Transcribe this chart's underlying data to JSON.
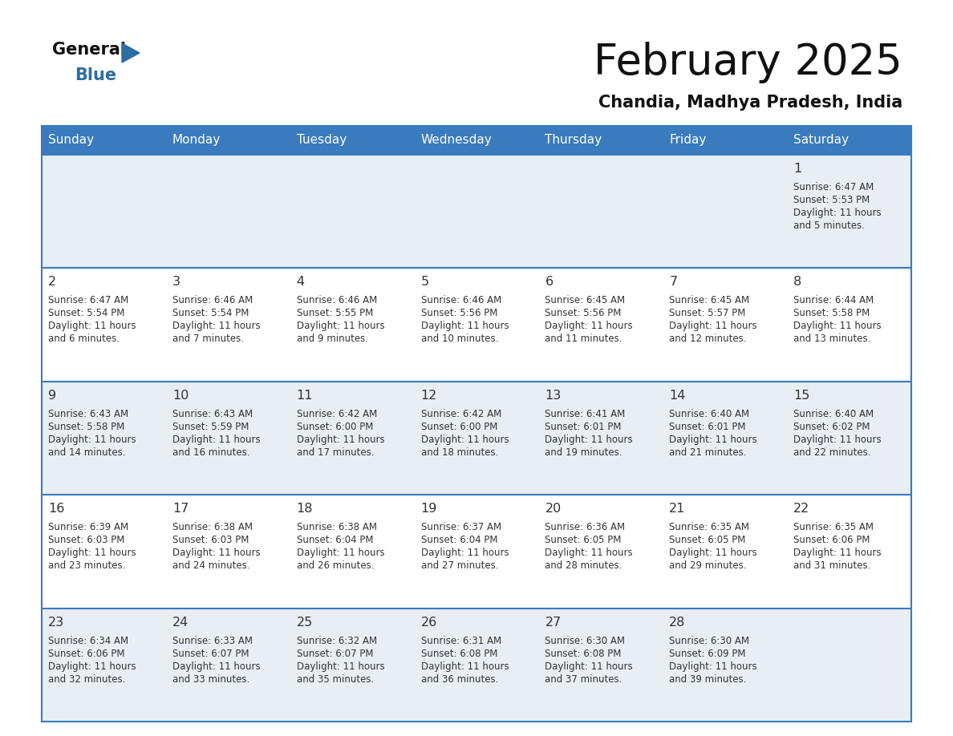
{
  "title": "February 2025",
  "subtitle": "Chandia, Madhya Pradesh, India",
  "days_of_week": [
    "Sunday",
    "Monday",
    "Tuesday",
    "Wednesday",
    "Thursday",
    "Friday",
    "Saturday"
  ],
  "header_bg": "#3a7bbf",
  "header_text": "#ffffff",
  "cell_bg_light": "#e8eef4",
  "cell_bg_white": "#ffffff",
  "grid_line_color": "#3a7bbf",
  "day_number_color": "#333333",
  "info_text_color": "#333333",
  "title_color": "#111111",
  "subtitle_color": "#111111",
  "logo_general_color": "#111111",
  "logo_blue_color": "#2e6da4",
  "calendar_data": [
    {
      "day": 1,
      "col": 6,
      "row": 0,
      "sunrise": "6:47 AM",
      "sunset": "5:53 PM",
      "daylight": "11 hours\nand 5 minutes."
    },
    {
      "day": 2,
      "col": 0,
      "row": 1,
      "sunrise": "6:47 AM",
      "sunset": "5:54 PM",
      "daylight": "11 hours\nand 6 minutes."
    },
    {
      "day": 3,
      "col": 1,
      "row": 1,
      "sunrise": "6:46 AM",
      "sunset": "5:54 PM",
      "daylight": "11 hours\nand 7 minutes."
    },
    {
      "day": 4,
      "col": 2,
      "row": 1,
      "sunrise": "6:46 AM",
      "sunset": "5:55 PM",
      "daylight": "11 hours\nand 9 minutes."
    },
    {
      "day": 5,
      "col": 3,
      "row": 1,
      "sunrise": "6:46 AM",
      "sunset": "5:56 PM",
      "daylight": "11 hours\nand 10 minutes."
    },
    {
      "day": 6,
      "col": 4,
      "row": 1,
      "sunrise": "6:45 AM",
      "sunset": "5:56 PM",
      "daylight": "11 hours\nand 11 minutes."
    },
    {
      "day": 7,
      "col": 5,
      "row": 1,
      "sunrise": "6:45 AM",
      "sunset": "5:57 PM",
      "daylight": "11 hours\nand 12 minutes."
    },
    {
      "day": 8,
      "col": 6,
      "row": 1,
      "sunrise": "6:44 AM",
      "sunset": "5:58 PM",
      "daylight": "11 hours\nand 13 minutes."
    },
    {
      "day": 9,
      "col": 0,
      "row": 2,
      "sunrise": "6:43 AM",
      "sunset": "5:58 PM",
      "daylight": "11 hours\nand 14 minutes."
    },
    {
      "day": 10,
      "col": 1,
      "row": 2,
      "sunrise": "6:43 AM",
      "sunset": "5:59 PM",
      "daylight": "11 hours\nand 16 minutes."
    },
    {
      "day": 11,
      "col": 2,
      "row": 2,
      "sunrise": "6:42 AM",
      "sunset": "6:00 PM",
      "daylight": "11 hours\nand 17 minutes."
    },
    {
      "day": 12,
      "col": 3,
      "row": 2,
      "sunrise": "6:42 AM",
      "sunset": "6:00 PM",
      "daylight": "11 hours\nand 18 minutes."
    },
    {
      "day": 13,
      "col": 4,
      "row": 2,
      "sunrise": "6:41 AM",
      "sunset": "6:01 PM",
      "daylight": "11 hours\nand 19 minutes."
    },
    {
      "day": 14,
      "col": 5,
      "row": 2,
      "sunrise": "6:40 AM",
      "sunset": "6:01 PM",
      "daylight": "11 hours\nand 21 minutes."
    },
    {
      "day": 15,
      "col": 6,
      "row": 2,
      "sunrise": "6:40 AM",
      "sunset": "6:02 PM",
      "daylight": "11 hours\nand 22 minutes."
    },
    {
      "day": 16,
      "col": 0,
      "row": 3,
      "sunrise": "6:39 AM",
      "sunset": "6:03 PM",
      "daylight": "11 hours\nand 23 minutes."
    },
    {
      "day": 17,
      "col": 1,
      "row": 3,
      "sunrise": "6:38 AM",
      "sunset": "6:03 PM",
      "daylight": "11 hours\nand 24 minutes."
    },
    {
      "day": 18,
      "col": 2,
      "row": 3,
      "sunrise": "6:38 AM",
      "sunset": "6:04 PM",
      "daylight": "11 hours\nand 26 minutes."
    },
    {
      "day": 19,
      "col": 3,
      "row": 3,
      "sunrise": "6:37 AM",
      "sunset": "6:04 PM",
      "daylight": "11 hours\nand 27 minutes."
    },
    {
      "day": 20,
      "col": 4,
      "row": 3,
      "sunrise": "6:36 AM",
      "sunset": "6:05 PM",
      "daylight": "11 hours\nand 28 minutes."
    },
    {
      "day": 21,
      "col": 5,
      "row": 3,
      "sunrise": "6:35 AM",
      "sunset": "6:05 PM",
      "daylight": "11 hours\nand 29 minutes."
    },
    {
      "day": 22,
      "col": 6,
      "row": 3,
      "sunrise": "6:35 AM",
      "sunset": "6:06 PM",
      "daylight": "11 hours\nand 31 minutes."
    },
    {
      "day": 23,
      "col": 0,
      "row": 4,
      "sunrise": "6:34 AM",
      "sunset": "6:06 PM",
      "daylight": "11 hours\nand 32 minutes."
    },
    {
      "day": 24,
      "col": 1,
      "row": 4,
      "sunrise": "6:33 AM",
      "sunset": "6:07 PM",
      "daylight": "11 hours\nand 33 minutes."
    },
    {
      "day": 25,
      "col": 2,
      "row": 4,
      "sunrise": "6:32 AM",
      "sunset": "6:07 PM",
      "daylight": "11 hours\nand 35 minutes."
    },
    {
      "day": 26,
      "col": 3,
      "row": 4,
      "sunrise": "6:31 AM",
      "sunset": "6:08 PM",
      "daylight": "11 hours\nand 36 minutes."
    },
    {
      "day": 27,
      "col": 4,
      "row": 4,
      "sunrise": "6:30 AM",
      "sunset": "6:08 PM",
      "daylight": "11 hours\nand 37 minutes."
    },
    {
      "day": 28,
      "col": 5,
      "row": 4,
      "sunrise": "6:30 AM",
      "sunset": "6:09 PM",
      "daylight": "11 hours\nand 39 minutes."
    }
  ],
  "row_backgrounds": [
    "light",
    "white",
    "light",
    "white",
    "light"
  ]
}
